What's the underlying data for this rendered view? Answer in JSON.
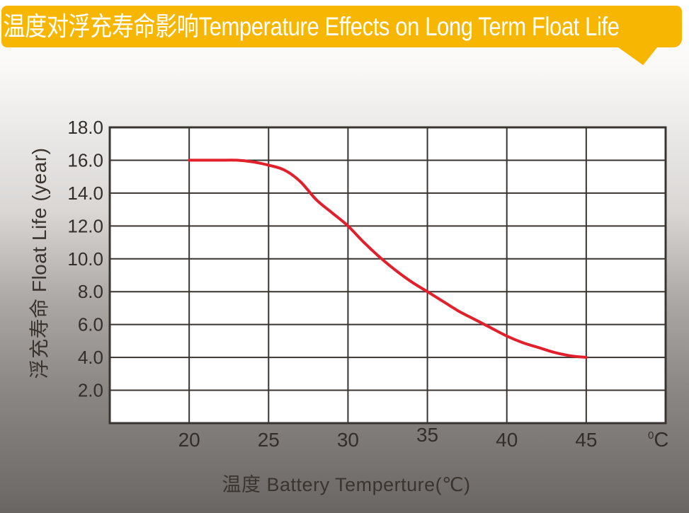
{
  "header": {
    "title": "温度对浮充寿命影响Temperature Effects on Long Term Float Life",
    "background_color": "#F7B601",
    "text_color": "#FFFFFF"
  },
  "chart_data": {
    "type": "line",
    "title": "温度对浮充寿命影响Temperature Effects on Long Term Float Life",
    "xlabel": "温度  Battery  Temperture(℃)",
    "ylabel": "浮充寿命  Float Life (year)",
    "xlim": [
      15,
      50
    ],
    "ylim": [
      0,
      18
    ],
    "grid": true,
    "legend_position": "none",
    "x_ticks": [
      {
        "label": "20",
        "value": 20,
        "raised": false
      },
      {
        "label": "25",
        "value": 25,
        "raised": false
      },
      {
        "label": "30",
        "value": 30,
        "raised": false
      },
      {
        "label": "35",
        "value": 35,
        "raised": true
      },
      {
        "label": "40",
        "value": 40,
        "raised": false
      },
      {
        "label": "45",
        "value": 45,
        "raised": false
      }
    ],
    "x_unit_sup": "0",
    "x_unit_main": "C",
    "y_ticks": [
      {
        "label": "18.0",
        "value": 18
      },
      {
        "label": "16.0",
        "value": 16
      },
      {
        "label": "14.0",
        "value": 14
      },
      {
        "label": "12.0",
        "value": 12
      },
      {
        "label": "10.0",
        "value": 10
      },
      {
        "label": "8.0",
        "value": 8
      },
      {
        "label": "6.0",
        "value": 6
      },
      {
        "label": "4.0",
        "value": 4
      },
      {
        "label": "2.0",
        "value": 2
      }
    ],
    "colors": {
      "line": "#E2202B",
      "grid": "#3A3431",
      "plot_background": "#FFFFFF",
      "tick_text": "#332E2A"
    },
    "series": [
      {
        "name": "float-life",
        "points": [
          [
            20,
            16.0
          ],
          [
            21,
            16.0
          ],
          [
            22,
            16.0
          ],
          [
            23,
            16.0
          ],
          [
            24,
            15.9
          ],
          [
            25,
            15.7
          ],
          [
            26,
            15.4
          ],
          [
            27,
            14.7
          ],
          [
            28,
            13.6
          ],
          [
            29,
            12.8
          ],
          [
            30,
            12.0
          ],
          [
            31,
            11.0
          ],
          [
            32,
            10.1
          ],
          [
            33,
            9.3
          ],
          [
            34,
            8.6
          ],
          [
            35,
            8.0
          ],
          [
            36,
            7.4
          ],
          [
            37,
            6.8
          ],
          [
            38,
            6.3
          ],
          [
            39,
            5.8
          ],
          [
            40,
            5.3
          ],
          [
            41,
            4.9
          ],
          [
            42,
            4.6
          ],
          [
            43,
            4.3
          ],
          [
            44,
            4.1
          ],
          [
            45,
            4.0
          ]
        ]
      }
    ]
  }
}
